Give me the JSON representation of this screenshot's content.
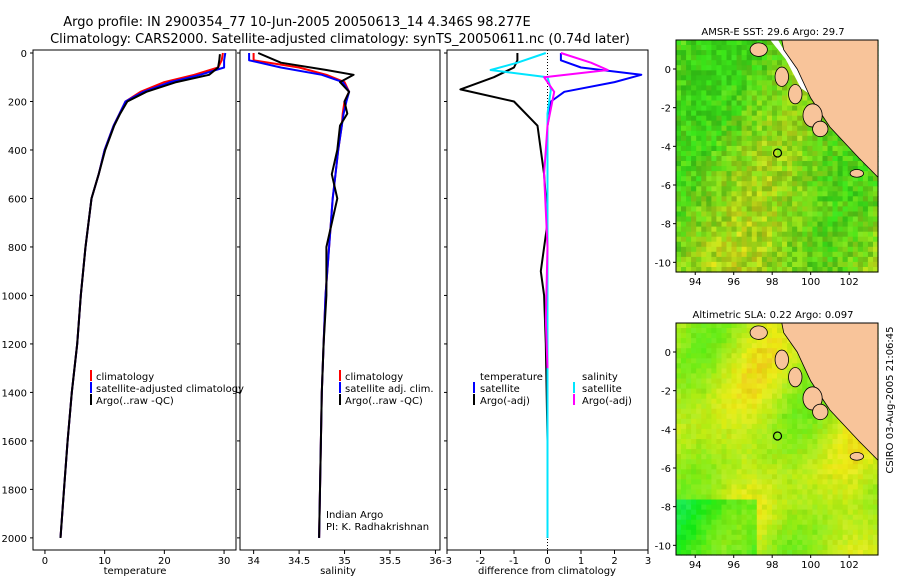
{
  "title": {
    "line1": "Argo profile: IN 2900354_77 10-Jun-2005 20050613_14 4.346S 98.277E",
    "line2": "Climatology: CARS2000. Satellite-adjusted climatology: synTS_20050611.nc (0.74d later)"
  },
  "side_label": "CSIRO 03-Aug-2005 21:06:45",
  "colors": {
    "climatology": "#ff0000",
    "satellite": "#0000ff",
    "argo": "#000000",
    "salinity": "#00e5ff",
    "argo_salinity": "#ff00ff",
    "land": "#f8c49a"
  },
  "chart_data": [
    {
      "type": "line",
      "name": "temperature-profile",
      "xlabel": "temperature",
      "ylabel": "",
      "xlim": [
        -2,
        32
      ],
      "ylim": [
        2050,
        0
      ],
      "xticks": [
        0,
        10,
        20,
        30
      ],
      "yticks": [
        0,
        200,
        400,
        600,
        800,
        1000,
        1200,
        1400,
        1600,
        1800,
        2000
      ],
      "legend": [
        "climatology",
        "satellite-adjusted climatology",
        "Argo(..raw -QC)"
      ],
      "series": [
        {
          "name": "climatology",
          "color": "#ff0000",
          "x": [
            29.8,
            29.6,
            29.0,
            25.0,
            20.0,
            16.0,
            13.5,
            12.5,
            11.5,
            10.0,
            9.0,
            7.8,
            6.8,
            6.0,
            5.4,
            4.5,
            3.8,
            3.2,
            2.6
          ],
          "y": [
            0,
            30,
            60,
            90,
            120,
            160,
            200,
            250,
            300,
            400,
            500,
            600,
            800,
            1000,
            1200,
            1400,
            1600,
            1800,
            2000
          ]
        },
        {
          "name": "satellite-adjusted climatology",
          "color": "#0000ff",
          "x": [
            30.2,
            30.0,
            30.0,
            26.0,
            21.0,
            16.5,
            13.5,
            12.5,
            11.5,
            10.0,
            9.0,
            7.8,
            6.8,
            6.0,
            5.4,
            4.5,
            3.8,
            3.2,
            2.6
          ],
          "y": [
            0,
            30,
            60,
            90,
            120,
            160,
            200,
            250,
            300,
            400,
            500,
            600,
            800,
            1000,
            1200,
            1400,
            1600,
            1800,
            2000
          ]
        },
        {
          "name": "Argo(..raw -QC)",
          "color": "#000000",
          "x": [
            29.3,
            29.2,
            29.0,
            27.5,
            22.0,
            17.0,
            13.8,
            12.6,
            11.6,
            10.1,
            9.0,
            7.8,
            6.8,
            6.0,
            5.4,
            4.5,
            3.8,
            3.2,
            2.6
          ],
          "y": [
            5,
            30,
            60,
            90,
            120,
            160,
            200,
            250,
            300,
            400,
            500,
            600,
            800,
            1000,
            1200,
            1400,
            1600,
            1800,
            2000
          ]
        }
      ]
    },
    {
      "type": "line",
      "name": "salinity-profile",
      "xlabel": "salinity",
      "xlim": [
        33.85,
        36.05
      ],
      "ylim": [
        2050,
        0
      ],
      "xticks": [
        34,
        34.5,
        35,
        35.5,
        36
      ],
      "legend": [
        "climatology",
        "satellite adj. clim.",
        "Argo(..raw -QC)"
      ],
      "annotation": [
        "Indian Argo",
        "PI: K. Radhakrishnan"
      ],
      "series": [
        {
          "name": "climatology",
          "color": "#ff0000",
          "x": [
            34.0,
            34.0,
            34.5,
            34.8,
            35.0,
            35.05,
            35.0,
            34.98,
            34.97,
            34.93,
            34.9,
            34.87,
            34.83,
            34.79,
            34.77,
            34.75,
            34.74,
            34.73,
            34.72
          ],
          "y": [
            0,
            30,
            60,
            90,
            120,
            160,
            200,
            250,
            300,
            400,
            500,
            600,
            800,
            1000,
            1200,
            1400,
            1600,
            1800,
            2000
          ]
        },
        {
          "name": "satellite adj. clim.",
          "color": "#0000ff",
          "x": [
            33.95,
            33.95,
            34.3,
            34.75,
            34.98,
            35.05,
            35.02,
            34.99,
            34.97,
            34.93,
            34.9,
            34.87,
            34.83,
            34.79,
            34.77,
            34.75,
            34.74,
            34.73,
            34.72
          ],
          "y": [
            0,
            30,
            60,
            90,
            120,
            160,
            200,
            250,
            300,
            400,
            500,
            600,
            800,
            1000,
            1200,
            1400,
            1600,
            1800,
            2000
          ]
        },
        {
          "name": "Argo(..raw -QC)",
          "color": "#000000",
          "x": [
            34.05,
            34.3,
            34.8,
            35.1,
            34.95,
            35.05,
            35.0,
            35.03,
            34.95,
            34.92,
            34.86,
            34.92,
            34.8,
            34.8,
            34.77,
            34.75,
            34.74,
            34.73,
            34.72
          ],
          "y": [
            0,
            40,
            70,
            90,
            120,
            160,
            200,
            250,
            300,
            400,
            500,
            600,
            800,
            1000,
            1200,
            1400,
            1600,
            1800,
            2000
          ]
        }
      ]
    },
    {
      "type": "line",
      "name": "difference-profile",
      "xlabel": "difference from climatology",
      "xlim": [
        -3,
        3
      ],
      "ylim": [
        2050,
        0
      ],
      "xticks": [
        -3,
        -2,
        -1,
        0,
        1,
        2,
        3
      ],
      "legend": [
        "temperature",
        "satellite",
        "Argo(-adj)",
        "salinity",
        "satellite",
        "Argo(-adj)"
      ],
      "series": [
        {
          "name": "temperature satellite",
          "color": "#0000ff",
          "x": [
            0.4,
            0.4,
            1.0,
            2.8,
            2.0,
            0.5,
            0.1,
            0.0,
            0.0,
            0.0,
            0.0,
            0.0,
            0.0
          ],
          "y": [
            0,
            30,
            60,
            90,
            120,
            160,
            200,
            300,
            500,
            800,
            1200,
            1600,
            2000
          ]
        },
        {
          "name": "temperature Argo(-adj)",
          "color": "#000000",
          "x": [
            -0.9,
            -0.9,
            -1.0,
            -1.6,
            -2.6,
            -1.0,
            -0.3,
            -0.1,
            0.0,
            -0.2,
            -0.1,
            -0.05,
            0.0,
            0.0
          ],
          "y": [
            0,
            30,
            60,
            100,
            150,
            200,
            300,
            500,
            700,
            900,
            1000,
            1200,
            1600,
            2000
          ]
        },
        {
          "name": "salinity satellite",
          "color": "#00e5ff",
          "x": [
            -0.05,
            -0.9,
            -1.7,
            0.0,
            0.1,
            0.0,
            0.0,
            0.0,
            0.0,
            0.0
          ],
          "y": [
            0,
            40,
            70,
            100,
            150,
            250,
            400,
            800,
            1200,
            2000
          ]
        },
        {
          "name": "salinity Argo(-adj)",
          "color": "#ff00ff",
          "x": [
            0.4,
            1.3,
            1.8,
            -0.1,
            0.2,
            0.0,
            -0.1,
            0.0,
            -0.05,
            0.0
          ],
          "y": [
            0,
            40,
            70,
            100,
            160,
            300,
            500,
            800,
            1100,
            1300
          ]
        }
      ]
    },
    {
      "type": "heatmap",
      "name": "sst-map",
      "title": "AMSR-E SST: 29.6 Argo: 29.7",
      "xlim": [
        93,
        103.5
      ],
      "ylim": [
        -10.5,
        1.5
      ],
      "xticks": [
        94,
        96,
        98,
        100,
        102
      ],
      "yticks": [
        0,
        -2,
        -4,
        -6,
        -8,
        -10
      ],
      "marker": {
        "lon": 98.277,
        "lat": -4.346
      }
    },
    {
      "type": "heatmap",
      "name": "sla-map",
      "title": "Altimetric SLA: 0.22 Argo: 0.097",
      "xlim": [
        93,
        103.5
      ],
      "ylim": [
        -10.5,
        1.5
      ],
      "xticks": [
        94,
        96,
        98,
        100,
        102
      ],
      "yticks": [
        0,
        -2,
        -4,
        -6,
        -8,
        -10
      ],
      "marker": {
        "lon": 98.277,
        "lat": -4.346
      }
    }
  ]
}
